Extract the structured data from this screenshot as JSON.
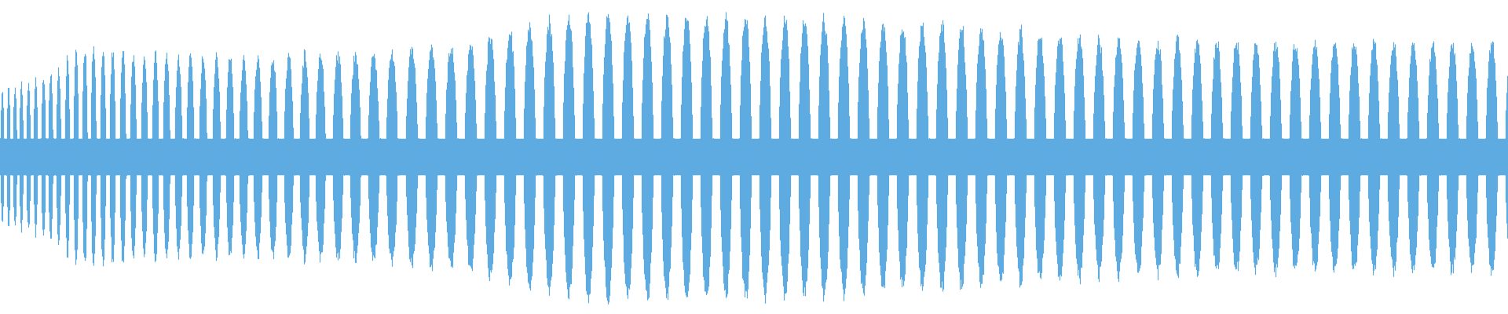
{
  "chart_data": {
    "type": "area",
    "title": "",
    "xlabel": "",
    "ylabel": "",
    "ylim": [
      -1,
      1
    ],
    "grid": false,
    "legend": "none",
    "color": "#5dabe1",
    "background": "#ffffff",
    "envelope": {
      "x": [
        0,
        0.04,
        0.05,
        0.1,
        0.16,
        0.21,
        0.26,
        0.31,
        0.34,
        0.37,
        0.42,
        0.47,
        0.52,
        0.57,
        0.63,
        0.68,
        0.73,
        0.78,
        0.83,
        0.89,
        0.94,
        1.0
      ],
      "amplitude": [
        0.45,
        0.6,
        0.75,
        0.7,
        0.68,
        0.7,
        0.72,
        0.78,
        0.88,
        0.95,
        0.97,
        0.97,
        0.96,
        0.93,
        0.9,
        0.86,
        0.82,
        0.8,
        0.78,
        0.8,
        0.78,
        0.8
      ]
    },
    "baseline_amplitude": 0.12
  }
}
